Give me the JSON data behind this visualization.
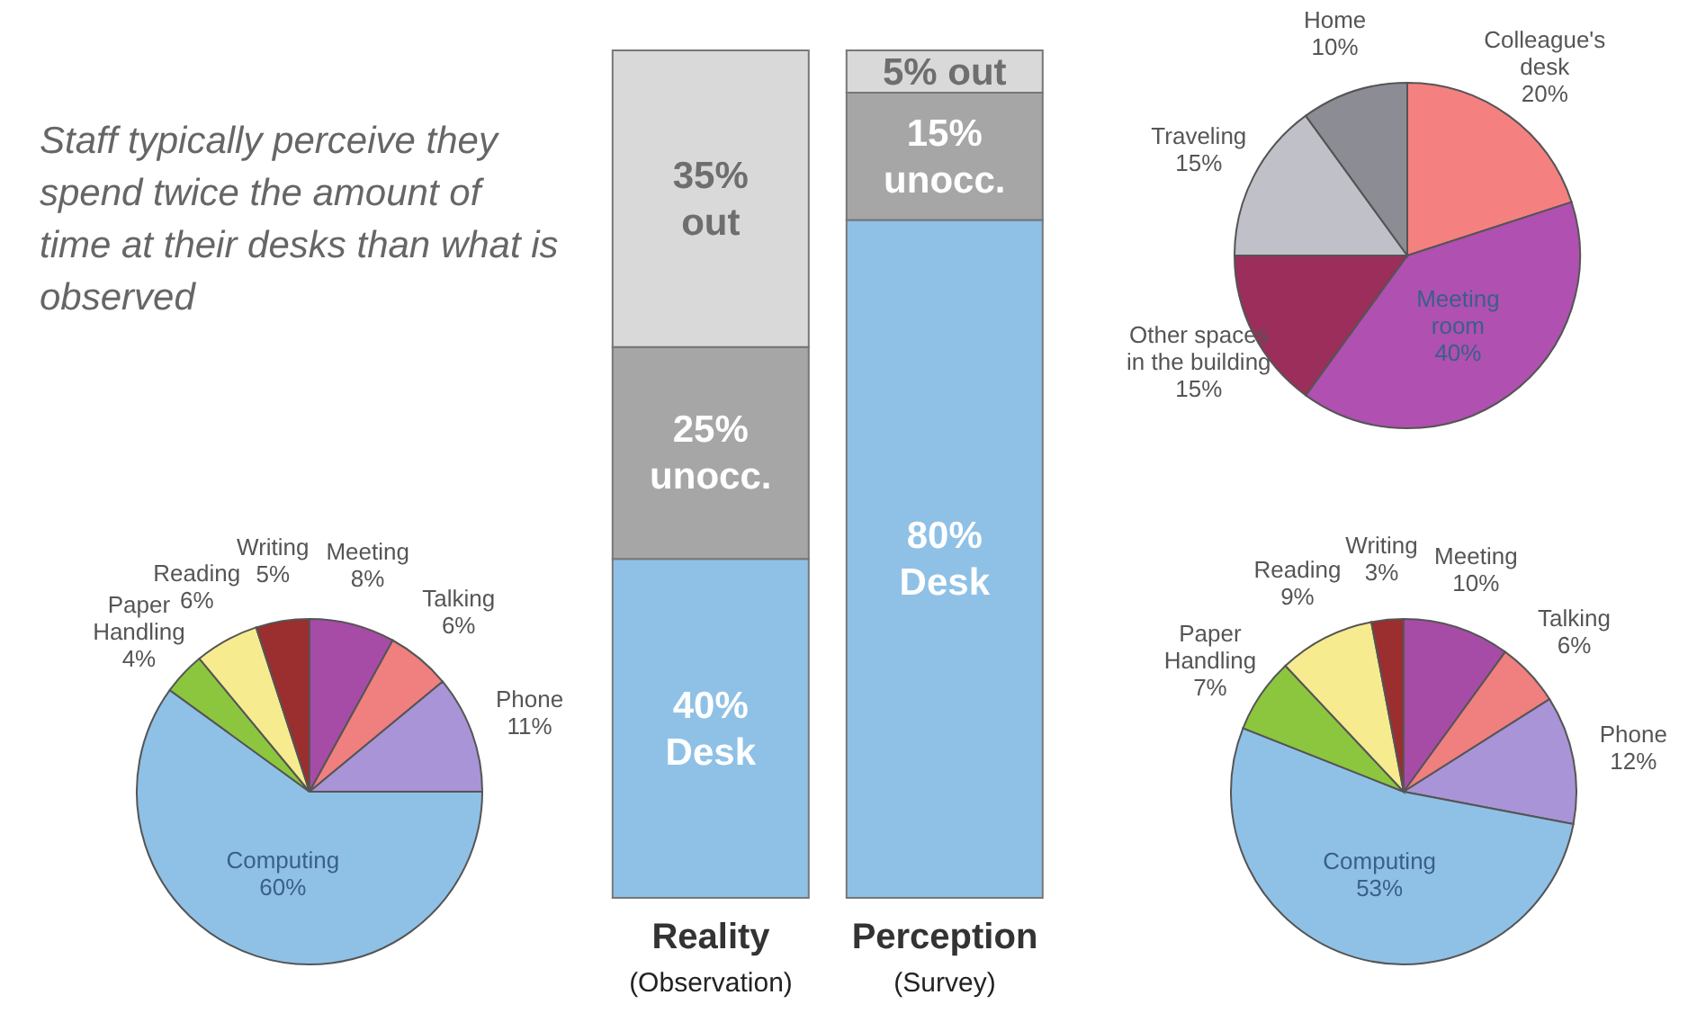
{
  "chart_data": [
    {
      "type": "bar",
      "title": "Staff typically perceive they spend twice the amount of time at their desks than what is observed",
      "stacked": true,
      "categories": [
        "Reality\n(Observation)",
        "Perception\n(Survey)"
      ],
      "series": [
        {
          "color": "#8fc1e6",
          "values": [
            40,
            80
          ],
          "value_labels": [
            "40%\nDesk",
            "80%\nDesk"
          ]
        },
        {
          "color": "#a6a6a6",
          "values": [
            25,
            15
          ],
          "value_labels": [
            "25%\nunocc.",
            "15%\nunocc."
          ]
        },
        {
          "color": "#d9d9d9",
          "values": [
            35,
            5
          ],
          "value_labels": [
            "35%\nout",
            "5% out"
          ]
        }
      ]
    },
    {
      "type": "pie",
      "categories": [
        "Meeting",
        "Talking",
        "Phone",
        "Computing",
        "Paper\nHandling",
        "Reading",
        "Writing"
      ],
      "values": [
        8,
        6,
        11,
        60,
        4,
        6,
        5
      ],
      "value_labels": [
        "8%",
        "6%",
        "11%",
        "60%",
        "4%",
        "6%",
        "5%"
      ],
      "colors": [
        "#a64ca6",
        "#f07f7f",
        "#a894d6",
        "#8fc1e6",
        "#8cc63f",
        "#f7eb8f",
        "#9b2e2e"
      ]
    },
    {
      "type": "pie",
      "categories": [
        "Colleague's\ndesk",
        "Meeting\nroom",
        "Other spaces\nin the building",
        "Traveling",
        "Home"
      ],
      "values": [
        20,
        40,
        15,
        15,
        10
      ],
      "value_labels": [
        "20%",
        "40%",
        "15%",
        "15%",
        "10%"
      ],
      "colors": [
        "#f58080",
        "#b050b0",
        "#9b2e5a",
        "#c0c0c8",
        "#8c8c94"
      ]
    },
    {
      "type": "pie",
      "categories": [
        "Meeting",
        "Talking",
        "Phone",
        "Computing",
        "Paper\nHandling",
        "Reading",
        "Writing"
      ],
      "values": [
        10,
        6,
        12,
        53,
        7,
        9,
        3
      ],
      "value_labels": [
        "10%",
        "6%",
        "12%",
        "53%",
        "7%",
        "9%",
        "3%"
      ],
      "colors": [
        "#a64ca6",
        "#f07f7f",
        "#a894d6",
        "#8fc1e6",
        "#8cc63f",
        "#f7eb8f",
        "#9b2e2e"
      ]
    }
  ]
}
